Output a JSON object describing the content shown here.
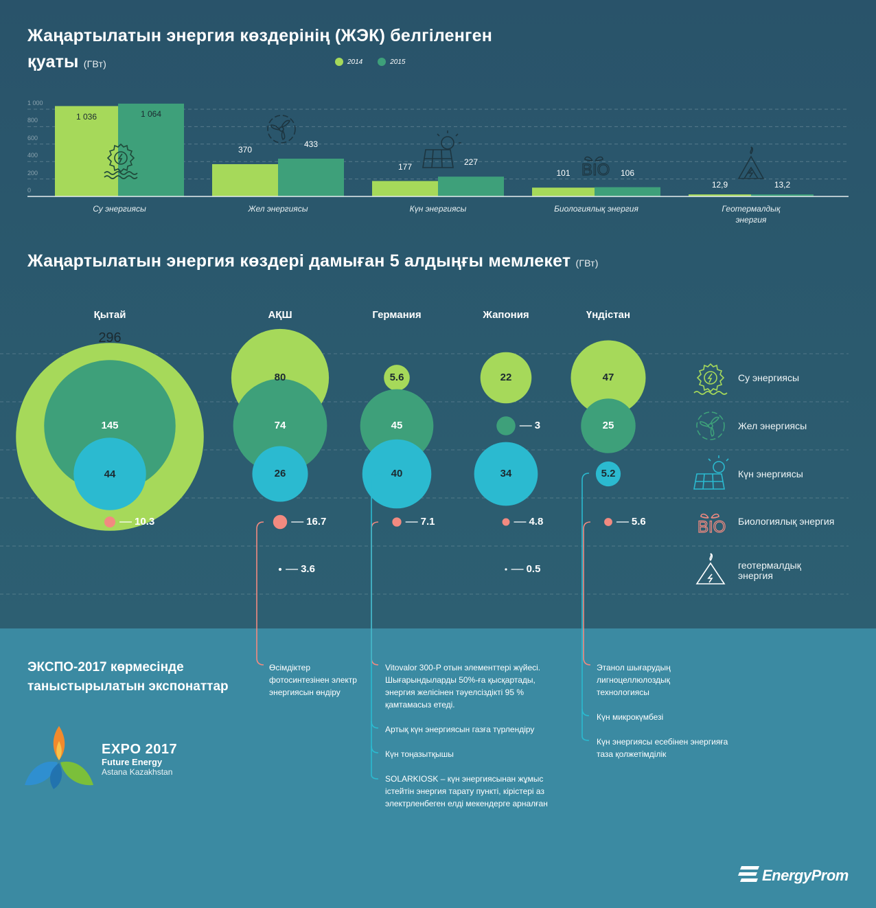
{
  "chart1": {
    "title": "Жаңартылатын энергия көздерінің (ЖЭК) белгіленген",
    "title_line2": "қуаты",
    "unit": "(ГВт)",
    "legend": [
      {
        "label": "2014",
        "color": "#a6d95a"
      },
      {
        "label": "2015",
        "color": "#3ea07a"
      }
    ]
  },
  "chart2": {
    "title": "Жаңартылатын энергия көздері дамыған 5 алдыңғы мемлекет",
    "unit": "(ГВт)",
    "legend": [
      {
        "label": "Су энергиясы",
        "icon": "hydro-icon",
        "color": "#a6d95a"
      },
      {
        "label": "Жел энергиясы",
        "icon": "wind-icon",
        "color": "#3ea07a"
      },
      {
        "label": "Күн энергиясы",
        "icon": "solar-icon",
        "color": "#2bbad0"
      },
      {
        "label": "Биологиялық энергия",
        "icon": "bio-icon",
        "color": "#f28a80"
      },
      {
        "label": "геотермалдық энергия",
        "icon": "geothermal-icon",
        "color": "#ffffff"
      }
    ]
  },
  "chart_data": [
    {
      "type": "bar",
      "title": "Жаңартылатын энергия көздерінің (ЖЭК) белгіленген қуаты (ГВт)",
      "categories": [
        "Су энергиясы",
        "Жел энергиясы",
        "Күн энергиясы",
        "Биологиялық энергия",
        "Геотермалдық энергия"
      ],
      "series": [
        {
          "name": "2014",
          "values": [
            1036,
            370,
            177,
            101,
            12.9
          ],
          "labels": [
            "1 036",
            "370",
            "177",
            "101",
            "12,9"
          ]
        },
        {
          "name": "2015",
          "values": [
            1064,
            433,
            227,
            106,
            13.2
          ],
          "labels": [
            "1 064",
            "433",
            "227",
            "106",
            "13,2"
          ]
        }
      ],
      "yticks": [
        "0",
        "200",
        "400",
        "600",
        "800",
        "1 000"
      ],
      "ylim": [
        0,
        1000
      ],
      "xlabel": "",
      "ylabel": ""
    },
    {
      "type": "bubble",
      "title": "Жаңартылатын энергия көздері дамыған 5 алдыңғы мемлекет (ГВт)",
      "countries": [
        "Қытай",
        "АҚШ",
        "Германия",
        "Жапония",
        "Үндістан"
      ],
      "series": [
        {
          "name": "Су энергиясы",
          "values": [
            296,
            80,
            5.6,
            22,
            47
          ]
        },
        {
          "name": "Жел энергиясы",
          "values": [
            145,
            74,
            45,
            3,
            25
          ]
        },
        {
          "name": "Күн энергиясы",
          "values": [
            44,
            26,
            40,
            34,
            5.2
          ]
        },
        {
          "name": "Биологиялық энергия",
          "values": [
            10.3,
            16.7,
            7.1,
            4.8,
            5.6
          ]
        },
        {
          "name": "Геотермалдық энергия",
          "values": [
            null,
            3.6,
            null,
            0.5,
            null
          ]
        }
      ]
    }
  ],
  "expo": {
    "title_line1": "ЭКСПО-2017 көрмесінде",
    "title_line2": "таныстырылатын экспонаттар",
    "logo_line1": "EXPO 2017",
    "logo_line2": "Future Energy",
    "logo_line3": "Astana Kazakhstan",
    "col_usa": [
      "Өсімдіктер фотосинтезінен электр энергиясын өндіру"
    ],
    "col_germany": [
      "Vitovalor 300-P отын элементтері жүйесі. Шығарындыларды 50%-ға қысқартады, энергия желісінен тәуелсіздікті 95 % қамтамасыз етеді.",
      "Артық күн энергиясын газға түрлендіру",
      "Күн тоңазытқышы",
      "SOLARKIOSK  – күн энергиясынан жұмыс істейтін энергия тарату пункті, кірістері аз электрленбеген  елді мекендерге арналған"
    ],
    "col_india": [
      "Этанол   шығарудың лигноцеллюлоздық технологиясы",
      "Күн микрокүмбезі",
      "Күн энергиясы есебінен энергияға таза қолжетімділік"
    ]
  },
  "brand": "EnergyProm"
}
